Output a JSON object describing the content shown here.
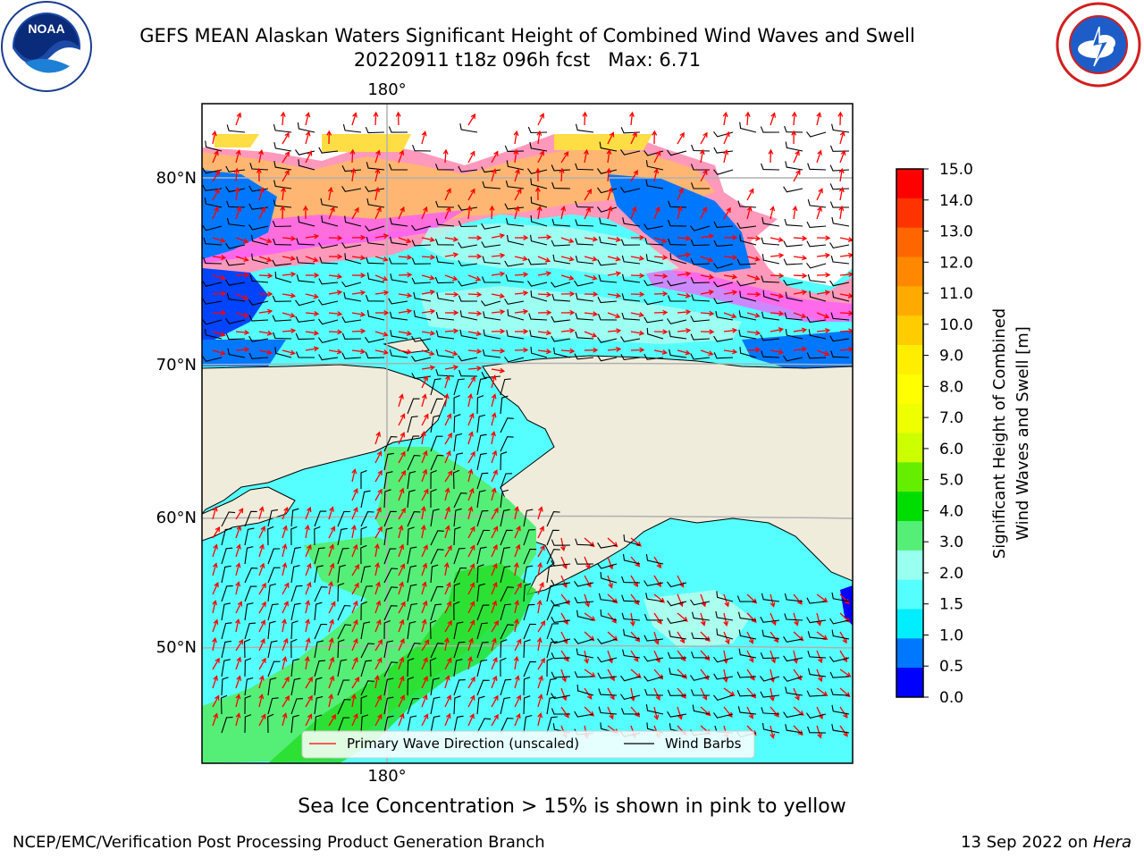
{
  "header": {
    "title_line1": "GEFS MEAN Alaskan Waters Significant Height of Combined Wind Waves and Swell",
    "title_line2": "20220911 t18z 096h fcst   Max: 6.71"
  },
  "logos": {
    "left": {
      "icon": "noaa-seal-icon",
      "text": "NOAA",
      "ring_text": "NATIONAL OCEANIC AND ATMOSPHERIC ADMINISTRATION · U.S. DEPARTMENT OF COMMERCE"
    },
    "right": {
      "icon": "nws-seal-icon",
      "ring_text": "NATIONAL WEATHER SERVICE"
    }
  },
  "map": {
    "lon_top_label": "180°",
    "lon_bottom_label": "180°",
    "lat_labels": [
      "80°N",
      "70°N",
      "60°N",
      "50°N"
    ],
    "land_color": "#efecdc",
    "ice_colors": [
      "#ff55ff",
      "#ff99bb",
      "#ffbb66",
      "#ffdd44"
    ],
    "legend": {
      "primary_wave_direction": "Primary Wave Direction (unscaled)",
      "wind_barbs": "Wind Barbs",
      "arrow_color": "#ff0000",
      "barb_color": "#000000"
    }
  },
  "colorbar": {
    "label_line1": "Significant Height of Combined",
    "label_line2": "Wind Waves and Swell [m]",
    "ticks": [
      "15.0",
      "14.0",
      "13.0",
      "12.0",
      "11.0",
      "10.0",
      "9.0",
      "8.0",
      "7.0",
      "6.0",
      "5.0",
      "4.0",
      "3.0",
      "2.0",
      "1.5",
      "1.0",
      "0.5",
      "0.0"
    ],
    "colors_top_to_bottom": [
      "#ff0000",
      "#ff3300",
      "#ff6600",
      "#ff8800",
      "#ffaa00",
      "#ffcc00",
      "#ffee00",
      "#ffff00",
      "#eeff00",
      "#ccff00",
      "#66ee00",
      "#00dd00",
      "#55ee77",
      "#99ffee",
      "#55ffff",
      "#00eeff",
      "#0077ff",
      "#0000ff"
    ]
  },
  "caption": "Sea Ice Concentration > 15% is shown in pink to yellow",
  "footer": {
    "left": "NCEP/EMC/Verification Post Processing Product Generation Branch",
    "right_date": "13 Sep 2022 on ",
    "right_machine": "Hera"
  }
}
